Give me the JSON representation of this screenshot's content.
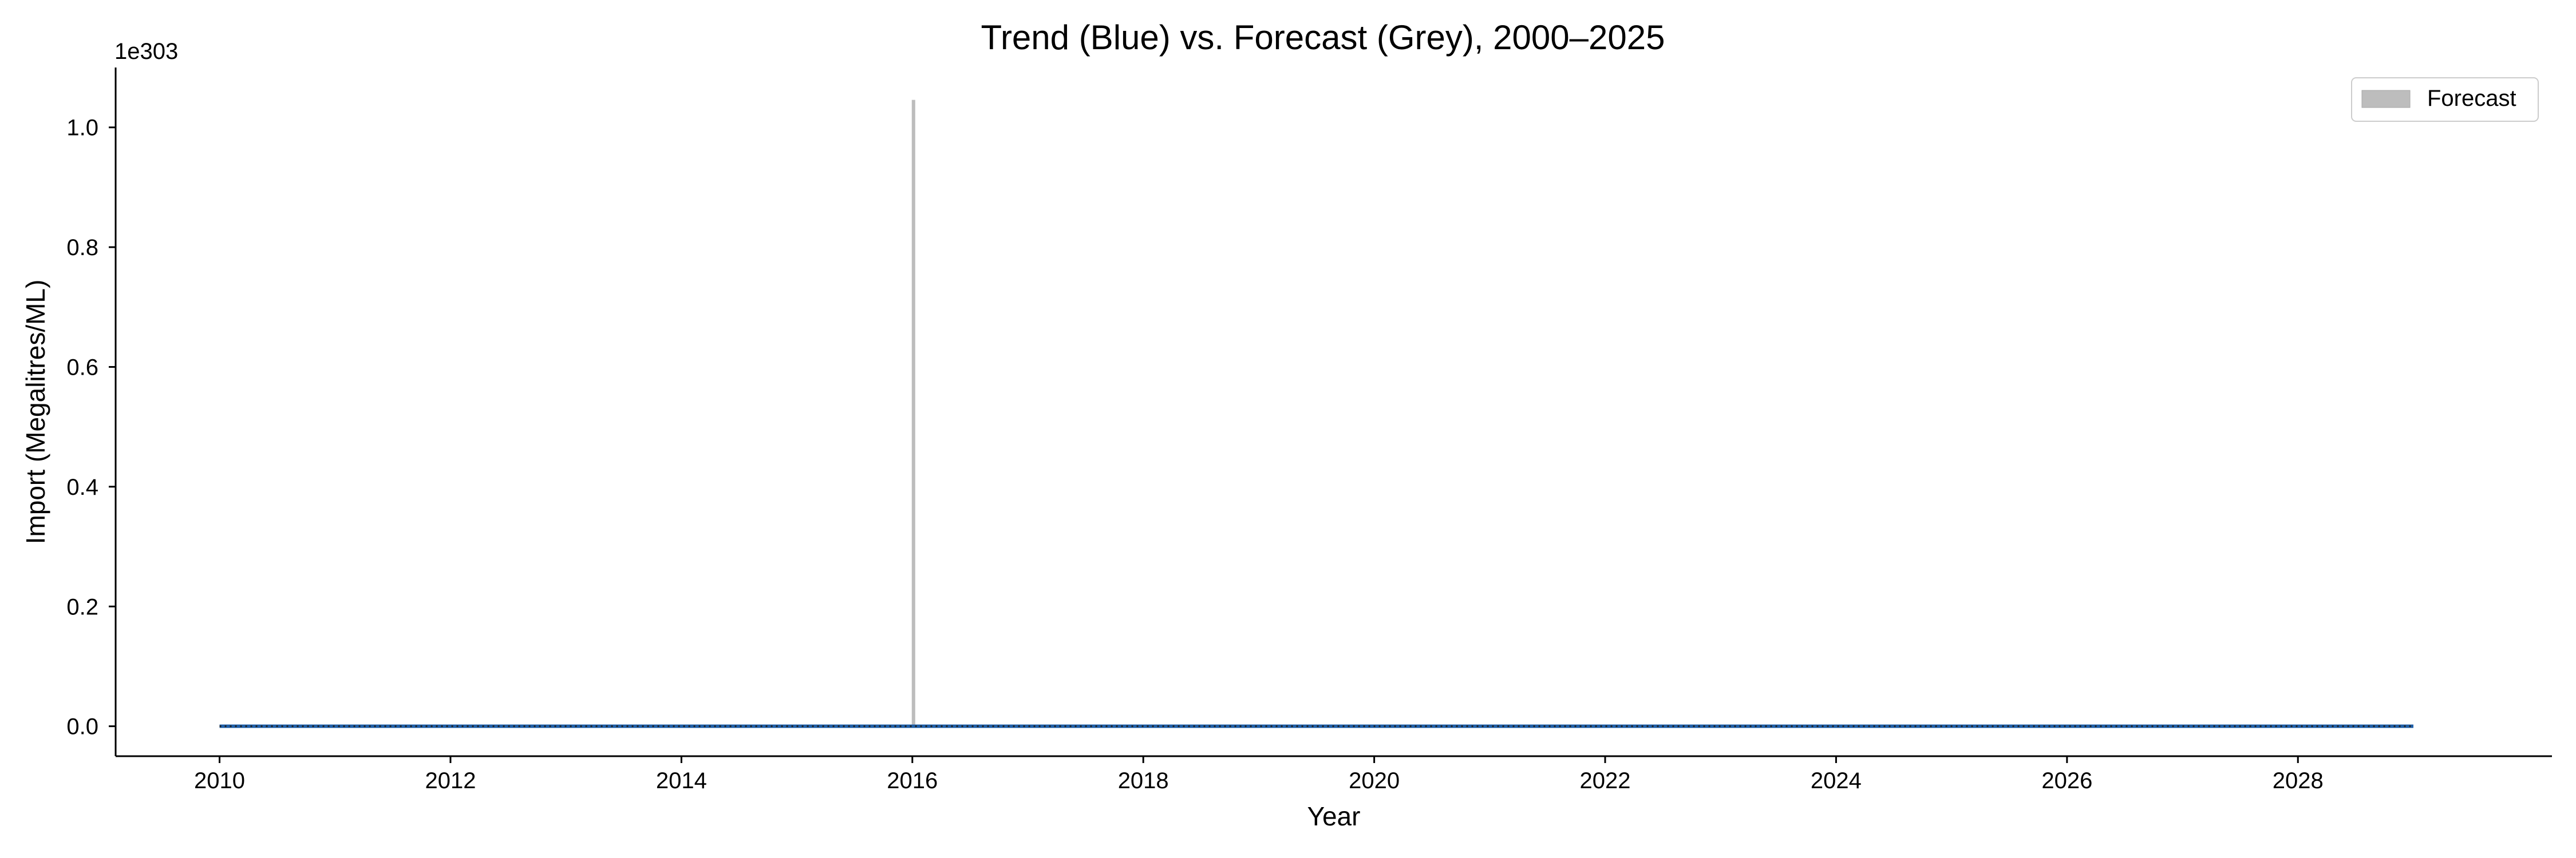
{
  "chart_data": {
    "type": "area",
    "title": "Trend (Blue) vs. Forecast (Grey), 2000–2025",
    "xlabel": "Year",
    "ylabel": "Import (Megalitres/ML)",
    "y_offset_text": "1e303",
    "xlim": [
      2009.1,
      2030.2
    ],
    "ylim": [
      -0.05,
      1.1
    ],
    "y_scale_factor": "1e303",
    "x_ticks": [
      2010,
      2012,
      2014,
      2016,
      2018,
      2020,
      2022,
      2024,
      2026,
      2028
    ],
    "x_tick_labels": [
      "2010",
      "2012",
      "2014",
      "2016",
      "2018",
      "2020",
      "2022",
      "2024",
      "2026",
      "2028"
    ],
    "y_ticks": [
      0.0,
      0.2,
      0.4,
      0.6,
      0.8,
      1.0
    ],
    "y_tick_labels": [
      "0.0",
      "0.2",
      "0.4",
      "0.6",
      "0.8",
      "1.0"
    ],
    "grid": false,
    "legend": {
      "placement": "top-right",
      "entries": [
        {
          "label": "Forecast",
          "color": "#bdbdbd"
        }
      ]
    },
    "series": [
      {
        "kind": "line",
        "color": "#1f5fa8",
        "x": [
          2010,
          2029
        ],
        "y": [
          0,
          0
        ]
      },
      {
        "kind": "line",
        "color": "#222222",
        "style": "dotted",
        "x": [
          2010,
          2029
        ],
        "y": [
          0,
          0
        ]
      },
      {
        "name": "Forecast",
        "kind": "area",
        "color": "#bdbdbd",
        "x": [
          2016,
          2016.02
        ],
        "y": [
          1.045,
          1.045
        ],
        "y_base": [
          0,
          0
        ]
      }
    ]
  }
}
